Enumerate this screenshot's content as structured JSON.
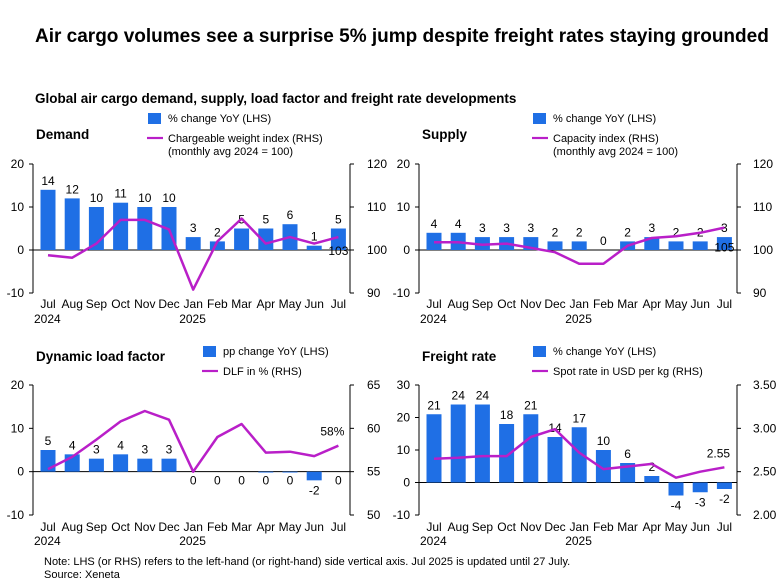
{
  "title": "Air cargo volumes see a surprise 5% jump despite freight rates staying grounded",
  "subtitle": "Global air cargo demand, supply, load factor and freight rate developments",
  "note": {
    "line1": "Note: LHS (or RHS) refers to the left-hand (or right-hand) side vertical axis. Jul 2025 is updated until 27 July.",
    "line2": "Source: Xeneta"
  },
  "colors": {
    "bar": "#1F6FE5",
    "line": "#B91FC8",
    "axis": "#000000"
  },
  "chart_data": [
    {
      "type": "bar+line",
      "panel_title": "Demand",
      "categories": [
        "Jul",
        "Aug",
        "Sep",
        "Oct",
        "Nov",
        "Dec",
        "Jan",
        "Feb",
        "Mar",
        "Apr",
        "May",
        "Jun",
        "Jul"
      ],
      "year_labels": [
        {
          "index": 0,
          "text": "2024"
        },
        {
          "index": 6,
          "text": "2025"
        }
      ],
      "series": [
        {
          "name": "% change YoY (LHS)",
          "type": "bar",
          "axis": "left",
          "values": [
            14,
            12,
            10,
            11,
            10,
            10,
            3,
            2,
            5,
            5,
            6,
            1,
            5
          ],
          "labels": [
            "14",
            "12",
            "10",
            "11",
            "10",
            "10",
            "3",
            "2",
            "5",
            "5",
            "6",
            "1",
            "5"
          ]
        },
        {
          "name": "Chargeable weight index (RHS) (monthly avg 2024 = 100)",
          "type": "line",
          "axis": "right",
          "values": [
            98.8,
            98.2,
            101.5,
            107,
            107,
            104.8,
            90.8,
            102,
            107.3,
            101.5,
            103,
            101.5,
            103
          ],
          "end_label": "103"
        }
      ],
      "left_axis": {
        "min": -10,
        "max": 20,
        "ticks": [
          20,
          10,
          0,
          -10
        ]
      },
      "right_axis": {
        "min": 90,
        "max": 120,
        "ticks": [
          120,
          110,
          100,
          90
        ]
      }
    },
    {
      "type": "bar+line",
      "panel_title": "Supply",
      "categories": [
        "Jul",
        "Aug",
        "Sep",
        "Oct",
        "Nov",
        "Dec",
        "Jan",
        "Feb",
        "Mar",
        "Apr",
        "May",
        "Jun",
        "Jul"
      ],
      "year_labels": [
        {
          "index": 0,
          "text": "2024"
        },
        {
          "index": 6,
          "text": "2025"
        }
      ],
      "series": [
        {
          "name": "% change YoY (LHS)",
          "type": "bar",
          "axis": "left",
          "values": [
            4,
            4,
            3,
            3,
            3,
            2,
            2,
            0,
            2,
            3,
            2,
            2,
            3
          ],
          "labels": [
            "4",
            "4",
            "3",
            "3",
            "3",
            "2",
            "2",
            "0",
            "2",
            "3",
            "2",
            "2",
            "3"
          ]
        },
        {
          "name": "Capacity index (RHS) (monthly avg 2024 = 100)",
          "type": "line",
          "axis": "right",
          "values": [
            101.8,
            101.8,
            101.2,
            101.5,
            100.5,
            99.5,
            96.8,
            96.8,
            101,
            102.8,
            103.2,
            104,
            105.2
          ],
          "end_label": "105"
        }
      ],
      "left_axis": {
        "min": -10,
        "max": 20,
        "ticks": [
          20,
          10,
          0,
          -10
        ]
      },
      "right_axis": {
        "min": 90,
        "max": 120,
        "ticks": [
          120,
          110,
          100,
          90
        ]
      }
    },
    {
      "type": "bar+line",
      "panel_title": "Dynamic load factor",
      "categories": [
        "Jul",
        "Aug",
        "Sep",
        "Oct",
        "Nov",
        "Dec",
        "Jan",
        "Feb",
        "Mar",
        "Apr",
        "May",
        "Jun",
        "Jul"
      ],
      "year_labels": [
        {
          "index": 0,
          "text": "2024"
        },
        {
          "index": 6,
          "text": "2025"
        }
      ],
      "series": [
        {
          "name": "pp change YoY (LHS)",
          "type": "bar",
          "axis": "left",
          "values": [
            5,
            4,
            3,
            4,
            3,
            3,
            0,
            0,
            0,
            -0.2,
            -0.2,
            -2,
            0
          ],
          "labels": [
            "5",
            "4",
            "3",
            "4",
            "3",
            "3",
            "0",
            "0",
            "0",
            "0",
            "0",
            "-2",
            "0"
          ]
        },
        {
          "name": "DLF in % (RHS)",
          "type": "line",
          "axis": "right",
          "values": [
            55.3,
            56.7,
            58.7,
            60.8,
            62,
            61,
            55,
            59,
            60.5,
            57.2,
            57.3,
            56.8,
            58
          ],
          "end_label": "58%"
        }
      ],
      "left_axis": {
        "min": -10,
        "max": 20,
        "ticks": [
          20,
          10,
          0,
          -10
        ]
      },
      "right_axis": {
        "min": 50,
        "max": 65,
        "ticks": [
          65,
          60,
          55,
          50
        ]
      }
    },
    {
      "type": "bar+line",
      "panel_title": "Freight rate",
      "categories": [
        "Jul",
        "Aug",
        "Sep",
        "Oct",
        "Nov",
        "Dec",
        "Jan",
        "Feb",
        "Mar",
        "Apr",
        "May",
        "Jun",
        "Jul"
      ],
      "year_labels": [
        {
          "index": 0,
          "text": "2024"
        },
        {
          "index": 6,
          "text": "2025"
        }
      ],
      "series": [
        {
          "name": "% change YoY (LHS)",
          "type": "bar",
          "axis": "left",
          "values": [
            21,
            24,
            24,
            18,
            21,
            14,
            17,
            10,
            6,
            2,
            -4,
            -3,
            -2
          ],
          "labels": [
            "21",
            "24",
            "24",
            "18",
            "21",
            "14",
            "17",
            "10",
            "6",
            "2",
            "-4",
            "-3",
            "-2"
          ]
        },
        {
          "name": "Spot rate in USD per kg (RHS)",
          "type": "line",
          "axis": "right",
          "values": [
            2.65,
            2.66,
            2.68,
            2.68,
            2.9,
            2.99,
            2.72,
            2.53,
            2.56,
            2.59,
            2.43,
            2.5,
            2.55
          ],
          "end_label": "2.55"
        }
      ],
      "left_axis": {
        "min": -5,
        "max": 30,
        "ticks": [
          30,
          20,
          10,
          0,
          -10
        ]
      },
      "right_axis": {
        "min": 2.0,
        "max": 3.5,
        "ticks": [
          "3.50",
          "3.00",
          "2.50",
          "2.00"
        ]
      }
    }
  ]
}
